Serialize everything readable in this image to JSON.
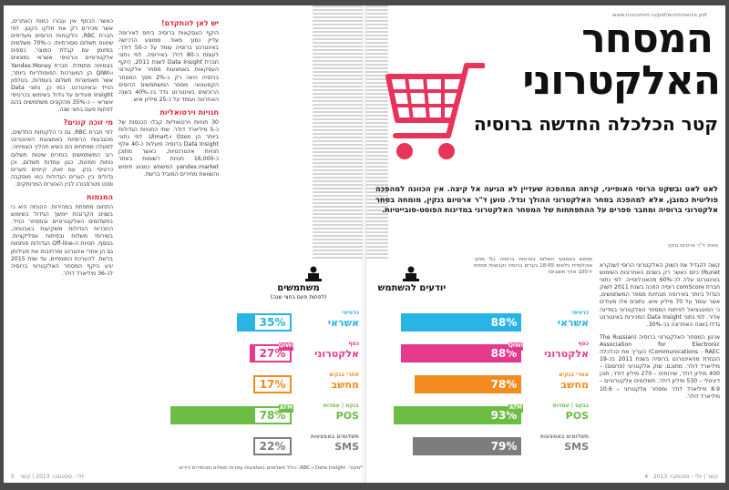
{
  "title": {
    "line1": "המסחר",
    "line2": "האלקטרוני",
    "subtitle": "קטר הכלכלה החדשה ברוסיה"
  },
  "site_tag": "www.ruscomm.ru/pdf/ecommerce.pdf",
  "lede": "לאט לאט ובשקט הרוסי האופייני, קרתה המהפכה שעדיין לא הגיעה אל קיצה. אין הכוונה למהפכה פוליטית כמובן, אלא למהפכה בסחר האלקטרוני ההולך וגדל. טוען ד\"ר ארטיום גנקין, מומחה בסחר אלקטרוני ברוסיה ומחבר ספרים על ההתפתחות של המסחר האלקטרוני במדינות הפוסט-סובייטיות.",
  "author": "מאת: ד\"ר ארטיום גנקין",
  "chart_caption": "שימוש באמצעי תשלום בפרסות ברוסיה (% מתוך אוכלוסיית גילאים 18-65 בערים ברוסיה וקבוצות מתחת ל-100 אלף תושבים)",
  "chart_data": {
    "type": "bar",
    "categories": [
      "כרטיסי אשראי",
      "כסף אלקטרוני",
      "אתרי בנקים מחשב",
      "בנקט | עמדות POS",
      "תשלומים באמצעות SMS"
    ],
    "series": [
      {
        "name": "יודעים להשתמש",
        "values": [
          88,
          88,
          78,
          93,
          79
        ]
      },
      {
        "name": "משתמשים (לפחות פעם בחצי שנה)",
        "values": [
          35,
          27,
          17,
          78,
          22
        ]
      }
    ],
    "colors": [
      "#29b4e6",
      "#e4398c",
      "#f28c1e",
      "#6cbc45",
      "#7d7d7d"
    ],
    "labels_right": [
      {
        "l1": "כרטיסי",
        "l2": "אשראי",
        "chip": ""
      },
      {
        "l1": "כסף",
        "l2": "אלקטרוני",
        "chip": "QIWI"
      },
      {
        "l1": "אתרי בנקים",
        "l2": "מחשב",
        "chip": ""
      },
      {
        "l1": "בנקט | עמדות",
        "l2": "POS",
        "chip": "ATM"
      },
      {
        "l1": "תשלומים באמצעות",
        "l2": "SMS",
        "chip": ""
      }
    ],
    "heading_know": "יודעים להשתמש",
    "heading_use_1": "משתמשים",
    "heading_use_2": "(לפחות פעם בחצי שנה)",
    "pct_know": [
      "88%",
      "88%",
      "78%",
      "93%",
      "79%"
    ],
    "pct_use": [
      "35%",
      "27%",
      "17%",
      "78%",
      "22%"
    ]
  },
  "right_col_a": "קשה להגדיל את השוק האלקטרוני הרוסי (שנקרא Runet) כיום כאשר רק בשנים האחרונות השימוש באינטרנט עלה לכ-60% מהאוכלוסייה. לפי נתוני חברת comScore רוסיה הפכה בשנת 2011 לשוק הגדול ביותר באירופה מבחינת מספר המשתמשים, אשר עומד על 70 מיליון איש. נתונים אלו מעידים כי הפוטנציאל לפיתוח המסחר האלקטרוני במדינה אדיר. לפי נתוני Data Insight המכירות באינטרנט גדלו בשנה האחרונה בכ-30%.",
  "right_col_b": "ארגון המסחר האלקטרוני ברוסיה (The Russian Association for Electronic Communications - RAEC) העריך את הכלכלה הנגזרת מהאינטרנט ברוסיה בשנת 2011 בכ-19 מיליארד דולר. מתוכם: שוק אלקטרוני (פרסום) – 400 מיליון דולר, שירותים – 270 מיליון דולר, תוכן דיגיטלי – 530 מיליון דולר, תשלומים אלקטרוניים – 8.9 מיליארד דולר ומסחר אלקטרוני – 10.6 מיליארד דולר.",
  "mid_head_1": "יש לאן להתקדם!",
  "mid_col_a": "היקף העסקאות ברוסיה ביחס לאירופה עדיין נמוך מאוד. ממוצע הרכישה באינטרנט ברוסיה עומד על כ-50 דולר, לעומת כ-80 דולר באירופה. לפי נתוני חברת Data Insight לשנת 2011, היקף העסקאות באמצעות מסחר אלקטרוני ברוסיה היווה רק כ-2% מסך המסחר הקמעונאי. מספר המשתמשים הרוסים הרוכשים באינטרנט גדל בכ-40% בשנה האחרונה ועומד על כ-25 מיליון איש.",
  "mid_head_2": "חנויות וירטואליות",
  "mid_col_b": "30 חנויות וירטואליות קבלו הכנסות של כ-5 מיליארד דולר. שתי החנויות הגדולות ביותר הן Ozon ו-Ulmart. לפי נתוני Data Insight ברוסיה פועלות כ-40 אלף חנויות אינטרנטיות, כאשר מתוכן כ-16,000 חנויות רשומות באתר yandex.market המשמש כמנוע חיפוש והשוואת מחירים המוביל ברשת.",
  "left_head_1": "מי זוכה קונים?",
  "left_col_a": "כאשר הכסף אין עבורו כמות האתרים, אשר מכירים רק את חלקו הקטן. לפי חברת RBC, הלקוחות הרוסים מעדיפים שיטות תשלום מסורתיות: כ-70% משלמים במזומן עם קבלת המוצר. כספים אלקטרוניים וכרטיסי אשראי נמצאים בצמיחה מתמדת. חברת Yandex.Money ו-QIWI הן המערכות הפופולריות ביותר, אשר מאפשרות תשלום בעמדות, בטלפון הנייד ובאינטרנט. כמו כן, נתוני Data Insight מעידים על גידול בשימוש בכרטיסי אשראי – כ-35% מהקונים משתמשים בהם לפחות פעם בחצי שנה.",
  "left_col_b": "לפי חברת RBC, גם כי הלקוחות החדשים, מהגבעות הרוסיות באמצעות האינטרנט למעלה מפתחים הם בשיא תהליך הצמיחה. רוב המשתמשים בוחרים שיטות תשלום נוחות וזמינות, כגון עמדות תשלום, וכן כרטיסי בנק. עם זאת, קיימים פערים גדולים בין הערים הגדולות כמו מוסקבה וסנט פטרסבורג לבין האזורים המרוחקים.",
  "left_head_2": "המגמות",
  "left_col_c": "התחום מתפתח במהירות. ההנחה היא כי בשנים הקרובות יימשך הגידול בשימוש בתשלומים האלקטרוניים ובמסחר הנייד. החברות הגדולות משקיעות באבטחה, בשירותי משלוח ובפיתוח אפליקציות. בנוסף, חנויות ה-Off-line הגדולות פותחות גם הן אתרי אינטרנט ומרחיבות את פעילותן ברשת. להערכת המומחים, עד שנת 2015 יגיע היקף המסחר האלקטרוני ברוסיה לכ-36 מיליארד דולר.",
  "footnote": "*מקור: Data Insight ו-RBC; כולל תשלומים באמצעות עמדות תשלום ומכשירים ניידים.",
  "folio_right": "קשר | יולי - ספטמבר 2013",
  "folio_left": "יולי - ספטמבר 2013 | קשר",
  "page_num_right": "4",
  "page_num_left": "5"
}
